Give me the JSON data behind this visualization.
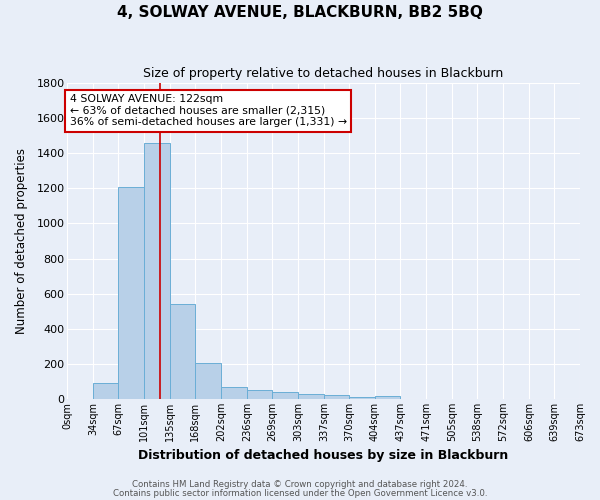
{
  "title": "4, SOLWAY AVENUE, BLACKBURN, BB2 5BQ",
  "subtitle": "Size of property relative to detached houses in Blackburn",
  "xlabel": "Distribution of detached houses by size in Blackburn",
  "ylabel": "Number of detached properties",
  "footnote1": "Contains HM Land Registry data © Crown copyright and database right 2024.",
  "footnote2": "Contains public sector information licensed under the Open Government Licence v3.0.",
  "bar_edges": [
    0,
    34,
    67,
    101,
    135,
    168,
    202,
    236,
    269,
    303,
    337,
    370,
    404,
    437,
    471,
    505,
    538,
    572,
    606,
    639,
    673
  ],
  "bar_heights": [
    0,
    90,
    1210,
    1460,
    540,
    205,
    65,
    50,
    40,
    28,
    25,
    12,
    15,
    0,
    0,
    0,
    0,
    0,
    0,
    0
  ],
  "bar_color": "#b8d0e8",
  "bar_edgecolor": "#6aaed6",
  "bar_linewidth": 0.7,
  "background_color": "#e8eef8",
  "grid_color": "#ffffff",
  "red_line_x": 122,
  "annotation_line1": "4 SOLWAY AVENUE: 122sqm",
  "annotation_line2": "← 63% of detached houses are smaller (2,315)",
  "annotation_line3": "36% of semi-detached houses are larger (1,331) →",
  "annotation_box_facecolor": "#ffffff",
  "annotation_box_edgecolor": "#cc0000",
  "ylim": [
    0,
    1800
  ],
  "yticks": [
    0,
    200,
    400,
    600,
    800,
    1000,
    1200,
    1400,
    1600,
    1800
  ],
  "tick_labels": [
    "0sqm",
    "34sqm",
    "67sqm",
    "101sqm",
    "135sqm",
    "168sqm",
    "202sqm",
    "236sqm",
    "269sqm",
    "303sqm",
    "337sqm",
    "370sqm",
    "404sqm",
    "437sqm",
    "471sqm",
    "505sqm",
    "538sqm",
    "572sqm",
    "606sqm",
    "639sqm",
    "673sqm"
  ]
}
